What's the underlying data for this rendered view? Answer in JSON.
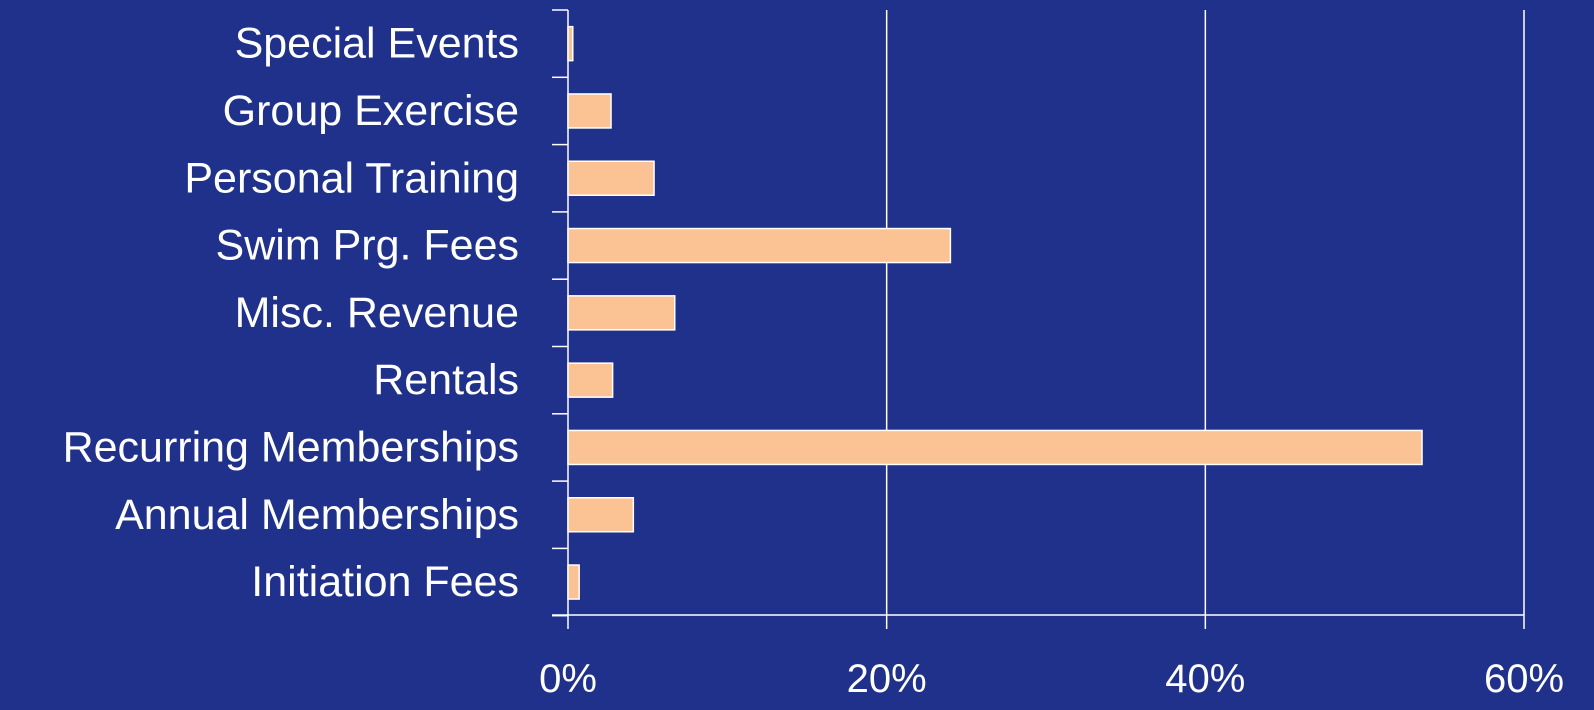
{
  "colors": {
    "background": "#1f318a",
    "bar_fill": "#fbc293",
    "bar_stroke": "#ffffff",
    "grid": "#ffffff",
    "text": "#ffffff"
  },
  "chart_data": {
    "type": "bar",
    "orientation": "horizontal",
    "title": "",
    "xlabel": "",
    "ylabel": "",
    "categories": [
      "Special Events",
      "Group Exercise",
      "Personal Training",
      "Swim Prg. Fees",
      "Misc. Revenue",
      "Rentals",
      "Recurring Memberships",
      "Annual Memberships",
      "Initiation Fees"
    ],
    "values": [
      0.3,
      2.7,
      5.4,
      24.0,
      6.7,
      2.8,
      53.6,
      4.1,
      0.7
    ],
    "xlim": [
      0,
      60
    ],
    "xticks": [
      0,
      20,
      40,
      60
    ],
    "xtick_labels": [
      "0%",
      "20%",
      "40%",
      "60%"
    ],
    "grid": "vertical",
    "legend": "none"
  }
}
